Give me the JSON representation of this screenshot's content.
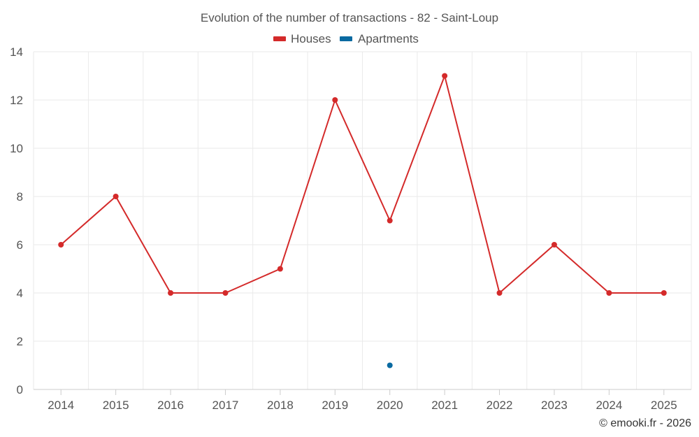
{
  "chart_data": {
    "type": "line",
    "title": "Evolution of the number of transactions - 82 - Saint-Loup",
    "categories": [
      "2014",
      "2015",
      "2016",
      "2017",
      "2018",
      "2019",
      "2020",
      "2021",
      "2022",
      "2023",
      "2024",
      "2025"
    ],
    "series": [
      {
        "name": "Houses",
        "color": "#d42a2a",
        "values": [
          6,
          8,
          4,
          4,
          5,
          12,
          7,
          13,
          4,
          6,
          4,
          4
        ]
      },
      {
        "name": "Apartments",
        "color": "#0a6aa1",
        "values": [
          null,
          null,
          null,
          null,
          null,
          null,
          1,
          null,
          null,
          null,
          null,
          null
        ]
      }
    ],
    "y_ticks": [
      "0",
      "2",
      "4",
      "6",
      "8",
      "10",
      "12",
      "14"
    ],
    "ylim": [
      0,
      14
    ],
    "xlabel": "",
    "ylabel": "",
    "legend_position": "top-center",
    "grid": true
  },
  "credit": "© emooki.fr - 2026"
}
